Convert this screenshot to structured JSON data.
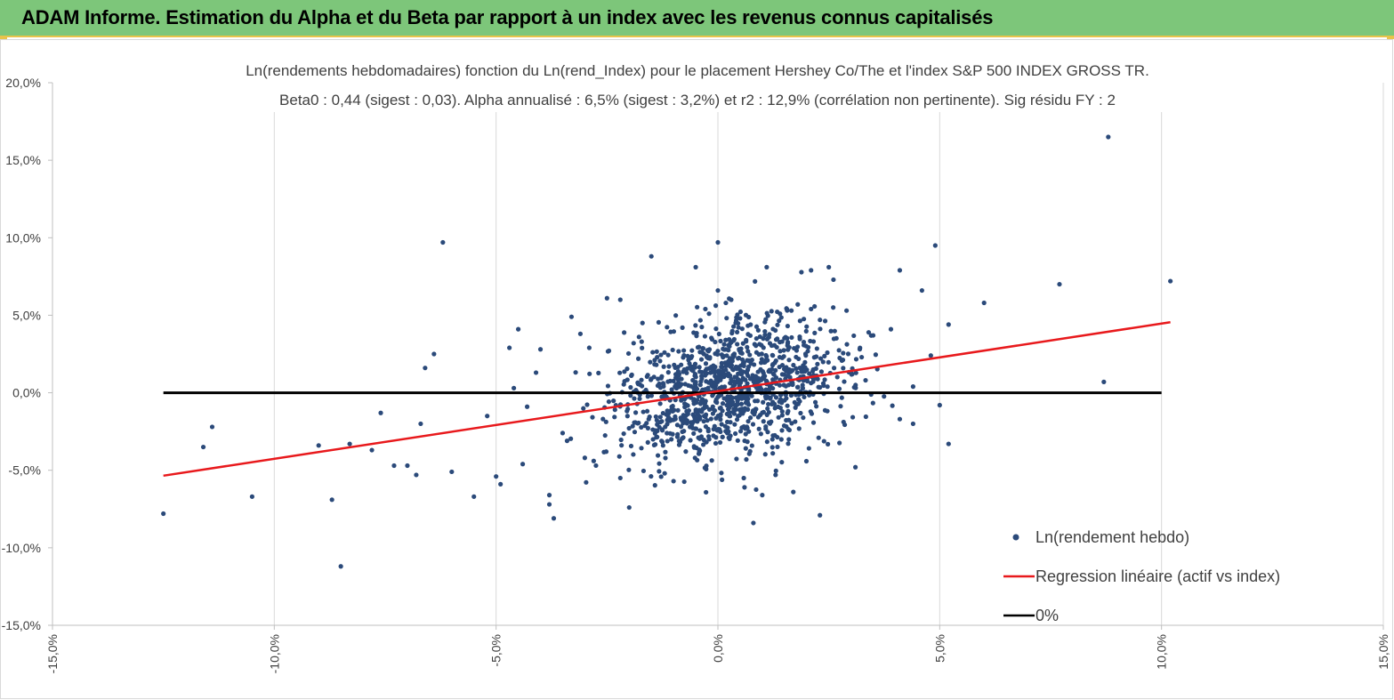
{
  "header": {
    "title": "ADAM Informe. Estimation du Alpha et du Beta par rapport à un index avec les revenus connus capitalisés"
  },
  "colors": {
    "banner": "#7dc67a",
    "accent_border": "#e9c34a",
    "points": "#2b4a7a",
    "regression": "#e8191c",
    "zero_line": "#000000",
    "grid": "#d9d9d9"
  },
  "chart_data": {
    "type": "scatter",
    "title_line1": "Ln(rendements hebdomadaires) fonction du Ln(rend_Index) pour le placement Hershey Co/The et l'index S&P 500 INDEX GROSS TR.",
    "title_line2": "Beta0 : 0,44 (sigest : 0,03). Alpha annualisé : 6,5% (sigest : 3,2%) et r2 : 12,9% (corrélation non pertinente). Sig résidu FY : 2",
    "xlim": [
      -0.15,
      0.15
    ],
    "ylim": [
      -0.15,
      0.2
    ],
    "x_ticks": [
      -0.15,
      -0.1,
      -0.05,
      0.0,
      0.05,
      0.1,
      0.15
    ],
    "x_tick_labels": [
      "-15,0%",
      "-10,0%",
      "-5,0%",
      "0,0%",
      "5,0%",
      "10,0%",
      "15,0%"
    ],
    "y_ticks": [
      -0.15,
      -0.1,
      -0.05,
      0.0,
      0.05,
      0.1,
      0.15,
      0.2
    ],
    "y_tick_labels": [
      "-15,0%",
      "-10,0%",
      "-5,0%",
      "0,0%",
      "5,0%",
      "10,0%",
      "15,0%",
      "20,0%"
    ],
    "grid": "vertical",
    "legend_position": "bottom-right",
    "series": [
      {
        "name": "Ln(rendement hebdo)",
        "kind": "points",
        "x": [
          0.088,
          -0.062,
          0.0,
          0.049,
          0.102,
          0.077,
          0.06,
          0.041,
          0.046,
          0.052,
          -0.015,
          -0.005,
          0.011,
          0.021,
          0.025,
          0.0,
          -0.125,
          -0.085,
          -0.116,
          -0.114,
          -0.105,
          -0.09,
          -0.087,
          -0.083,
          -0.078,
          -0.076,
          -0.073,
          -0.07,
          -0.068,
          -0.067,
          -0.066,
          -0.064,
          -0.06,
          -0.055,
          -0.052,
          -0.05,
          -0.049,
          -0.047,
          -0.038,
          -0.038,
          -0.037,
          -0.02,
          -0.028,
          -0.025,
          -0.022,
          0.008,
          0.017,
          0.023,
          0.05,
          0.052,
          0.087,
          0.041,
          0.044,
          -0.046,
          -0.045,
          -0.043,
          -0.041,
          -0.04,
          -0.044,
          -0.033,
          -0.03,
          -0.034,
          -0.031,
          -0.035,
          -0.029,
          -0.022,
          -0.019,
          -0.017,
          -0.012,
          -0.01,
          -0.008,
          0.005,
          0.01,
          0.014,
          0.018,
          0.021,
          0.026,
          0.029,
          0.031,
          0.035,
          0.039,
          0.044,
          0.048,
          0.003,
          -0.002,
          0.006,
          0.013
        ],
        "y": [
          0.165,
          0.097,
          0.097,
          0.095,
          0.072,
          0.07,
          0.058,
          0.079,
          0.066,
          0.044,
          0.088,
          0.081,
          0.081,
          0.079,
          0.081,
          0.066,
          -0.078,
          -0.112,
          -0.035,
          -0.022,
          -0.067,
          -0.034,
          -0.069,
          -0.033,
          -0.037,
          -0.013,
          -0.047,
          -0.047,
          -0.053,
          -0.02,
          0.016,
          0.025,
          -0.051,
          -0.067,
          -0.015,
          -0.054,
          -0.059,
          0.029,
          -0.066,
          -0.072,
          -0.081,
          -0.074,
          -0.044,
          0.061,
          0.06,
          -0.084,
          -0.064,
          -0.079,
          -0.008,
          -0.033,
          0.007,
          -0.017,
          -0.02,
          0.003,
          0.041,
          -0.009,
          0.013,
          0.028,
          -0.046,
          0.049,
          -0.042,
          -0.031,
          0.038,
          -0.026,
          0.029,
          -0.055,
          0.032,
          0.045,
          -0.052,
          -0.057,
          0.042,
          0.048,
          -0.066,
          0.051,
          0.057,
          0.054,
          0.055,
          0.053,
          -0.048,
          0.037,
          0.041,
          0.004,
          0.024,
          0.06,
          0.051,
          -0.061,
          -0.053
        ]
      },
      {
        "name": "Regression linéaire (actif vs index)",
        "kind": "line",
        "x": [
          -0.125,
          0.102
        ],
        "y": [
          -0.0535,
          0.0455
        ]
      },
      {
        "name": "0%",
        "kind": "line",
        "x": [
          -0.125,
          0.1
        ],
        "y": [
          0.0,
          0.0
        ]
      }
    ]
  }
}
